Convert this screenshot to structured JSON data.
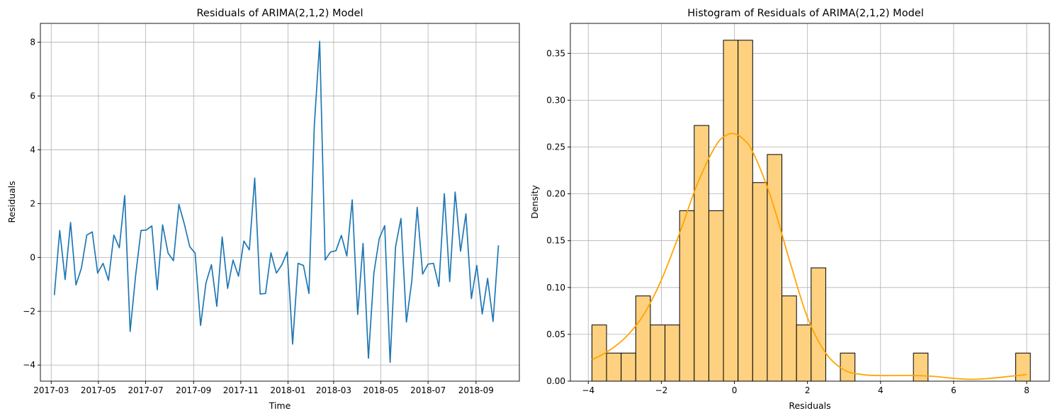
{
  "chart_data": [
    {
      "type": "line",
      "title": "Residuals of ARIMA(2,1,2) Model",
      "xlabel": "Time",
      "ylabel": "Residuals",
      "xlim": [
        "2017-02-15",
        "2018-10-27"
      ],
      "ylim": [
        -4.6,
        8.7
      ],
      "grid": true,
      "x_ticks": [
        "2017-03",
        "2017-05",
        "2017-07",
        "2017-09",
        "2017-11",
        "2018-01",
        "2018-03",
        "2018-05",
        "2018-07",
        "2018-09"
      ],
      "y_ticks": [
        -4,
        -2,
        0,
        2,
        4,
        6,
        8
      ],
      "color": "#1f77b4",
      "series": [
        {
          "x": [
            "2017-03-05",
            "2017-03-12",
            "2017-03-19",
            "2017-03-26",
            "2017-04-02",
            "2017-04-09",
            "2017-04-16",
            "2017-04-23",
            "2017-04-30",
            "2017-05-07",
            "2017-05-14",
            "2017-05-21",
            "2017-05-28",
            "2017-06-04",
            "2017-06-11",
            "2017-06-18",
            "2017-06-25",
            "2017-07-02",
            "2017-07-09",
            "2017-07-16",
            "2017-07-23",
            "2017-07-30",
            "2017-08-06",
            "2017-08-13",
            "2017-08-20",
            "2017-08-27",
            "2017-09-03",
            "2017-09-10",
            "2017-09-17",
            "2017-09-24",
            "2017-10-01",
            "2017-10-08",
            "2017-10-15",
            "2017-10-22",
            "2017-10-29",
            "2017-11-05",
            "2017-11-12",
            "2017-11-19",
            "2017-11-26",
            "2017-12-03",
            "2017-12-10",
            "2017-12-17",
            "2017-12-24",
            "2017-12-31",
            "2018-01-07",
            "2018-01-14",
            "2018-01-21",
            "2018-01-28",
            "2018-02-04",
            "2018-02-11",
            "2018-02-18",
            "2018-02-25",
            "2018-03-04",
            "2018-03-11",
            "2018-03-18",
            "2018-03-25",
            "2018-04-01",
            "2018-04-08",
            "2018-04-15",
            "2018-04-22",
            "2018-04-29",
            "2018-05-06",
            "2018-05-13",
            "2018-05-20",
            "2018-05-27",
            "2018-06-03",
            "2018-06-10",
            "2018-06-17",
            "2018-06-24",
            "2018-07-01",
            "2018-07-08",
            "2018-07-15",
            "2018-07-22",
            "2018-07-29",
            "2018-08-05",
            "2018-08-12",
            "2018-08-19",
            "2018-08-26",
            "2018-09-02",
            "2018-09-09",
            "2018-09-16",
            "2018-09-23",
            "2018-09-30"
          ],
          "values": [
            -1.4,
            1.0,
            -0.82,
            1.3,
            -1.02,
            -0.4,
            0.83,
            0.95,
            -0.58,
            -0.22,
            -0.85,
            0.83,
            0.36,
            2.3,
            -2.75,
            -0.7,
            1.0,
            1.02,
            1.17,
            -1.2,
            1.21,
            0.16,
            -0.12,
            1.97,
            1.25,
            0.4,
            0.16,
            -2.53,
            -0.95,
            -0.27,
            -1.82,
            0.76,
            -1.15,
            -0.1,
            -0.7,
            0.61,
            0.28,
            2.95,
            -1.36,
            -1.34,
            0.17,
            -0.58,
            -0.28,
            0.2,
            -3.22,
            -0.22,
            -0.3,
            -1.34,
            4.9,
            8.03,
            -0.09,
            0.2,
            0.25,
            0.82,
            0.05,
            2.14,
            -2.12,
            0.52,
            -3.75,
            -0.58,
            0.71,
            1.18,
            -3.9,
            0.4,
            1.45,
            -2.4,
            -0.88,
            1.86,
            -0.62,
            -0.25,
            -0.22,
            -1.08,
            2.37,
            -0.9,
            2.43,
            0.23,
            1.62,
            -1.53,
            -0.3,
            -2.1,
            -0.78,
            -2.38,
            0.45
          ]
        }
      ]
    },
    {
      "type": "bar",
      "title": "Histogram of Residuals of ARIMA(2,1,2) Model",
      "xlabel": "Residuals",
      "ylabel": "Density",
      "xlim": [
        -4.49,
        8.62
      ],
      "ylim": [
        0,
        0.382
      ],
      "grid": true,
      "x_ticks": [
        -4,
        -2,
        0,
        2,
        4,
        6,
        8
      ],
      "y_ticks": [
        "0.00",
        "0.05",
        "0.10",
        "0.15",
        "0.20",
        "0.25",
        "0.30",
        "0.35"
      ],
      "bar_fill": "#fed180",
      "bar_edge": "#000000",
      "kde_color": "#ffa500",
      "bin_edges": [
        -3.9,
        -3.5,
        -3.1,
        -2.7,
        -2.3,
        -1.9,
        -1.5,
        -1.1,
        -0.7,
        -0.3,
        0.1,
        0.5,
        0.9,
        1.3,
        1.7,
        2.1,
        2.5,
        2.9,
        3.3,
        3.7,
        4.1,
        4.5,
        4.9,
        5.3,
        5.7,
        6.1,
        6.5,
        6.9,
        7.3,
        7.7,
        8.1
      ],
      "densities": [
        0.06,
        0.03,
        0.03,
        0.091,
        0.06,
        0.06,
        0.182,
        0.273,
        0.182,
        0.364,
        0.364,
        0.212,
        0.242,
        0.091,
        0.06,
        0.121,
        0.0,
        0.03,
        0.0,
        0.0,
        0.0,
        0.0,
        0.03,
        0.0,
        0.0,
        0.0,
        0.0,
        0.0,
        0.0,
        0.03
      ],
      "kde": {
        "x": [
          -3.9,
          -3.5,
          -3.0,
          -2.5,
          -2.0,
          -1.5,
          -1.0,
          -0.5,
          -0.2,
          0.0,
          0.2,
          0.5,
          1.0,
          1.5,
          2.0,
          2.5,
          3.0,
          3.5,
          4.0,
          4.5,
          5.0,
          5.5,
          6.0,
          6.5,
          7.0,
          7.5,
          8.0
        ],
        "y": [
          0.023,
          0.031,
          0.046,
          0.07,
          0.108,
          0.158,
          0.212,
          0.252,
          0.263,
          0.264,
          0.26,
          0.245,
          0.196,
          0.13,
          0.068,
          0.03,
          0.012,
          0.007,
          0.006,
          0.006,
          0.006,
          0.005,
          0.003,
          0.002,
          0.003,
          0.005,
          0.007
        ]
      }
    }
  ]
}
